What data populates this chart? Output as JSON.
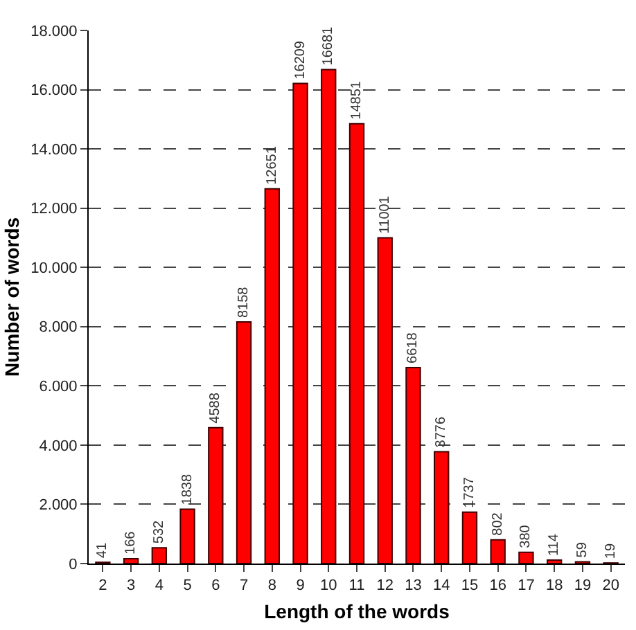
{
  "chart_data": {
    "type": "bar",
    "xlabel": "Length of the words",
    "ylabel": "Number of words",
    "categories": [
      "2",
      "3",
      "4",
      "5",
      "6",
      "7",
      "8",
      "9",
      "10",
      "11",
      "12",
      "13",
      "14",
      "15",
      "16",
      "17",
      "18",
      "19",
      "20"
    ],
    "values": [
      41,
      166,
      532,
      1838,
      4588,
      8158,
      12651,
      16209,
      16681,
      14851,
      11001,
      6618,
      3776,
      1737,
      802,
      380,
      114,
      59,
      19
    ],
    "color": "#ff0000",
    "data_labels": true,
    "grid": "y",
    "ylim": [
      0,
      18000
    ],
    "yticks": [
      0,
      {
        "value": 2000,
        "label": "2.000"
      },
      {
        "value": 4000,
        "label": "4.000"
      },
      {
        "value": 6000,
        "label": "6.000"
      },
      {
        "value": 8000,
        "label": "8.000"
      },
      {
        "value": 10000,
        "label": "10.000"
      },
      {
        "value": 12000,
        "label": "12.000"
      },
      {
        "value": 14000,
        "label": "14.000"
      },
      {
        "value": 16000,
        "label": "16.000"
      },
      {
        "value": 18000,
        "label": "18.000"
      }
    ]
  }
}
